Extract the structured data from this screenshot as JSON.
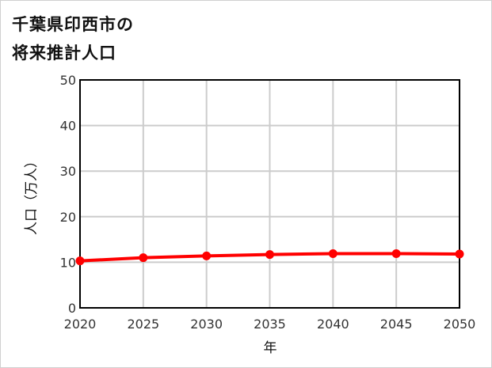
{
  "title_line1": "千葉県印西市の",
  "title_line2": "将来推計人口",
  "chart_data": {
    "type": "line",
    "title": "千葉県印西市の将来推計人口",
    "xlabel": "年",
    "ylabel": "人口（万人）",
    "x": [
      2020,
      2025,
      2030,
      2035,
      2040,
      2045,
      2050
    ],
    "series": [
      {
        "name": "人口（万人）",
        "values": [
          10.3,
          11.0,
          11.4,
          11.7,
          11.9,
          11.9,
          11.8
        ],
        "color": "#ff0000"
      }
    ],
    "ylim": [
      0,
      50
    ],
    "yticks": [
      0,
      10,
      20,
      30,
      40,
      50
    ],
    "xticks": [
      "2020",
      "2025",
      "2030",
      "2035",
      "2040",
      "2045",
      "2050"
    ],
    "grid": true,
    "legend": null
  }
}
